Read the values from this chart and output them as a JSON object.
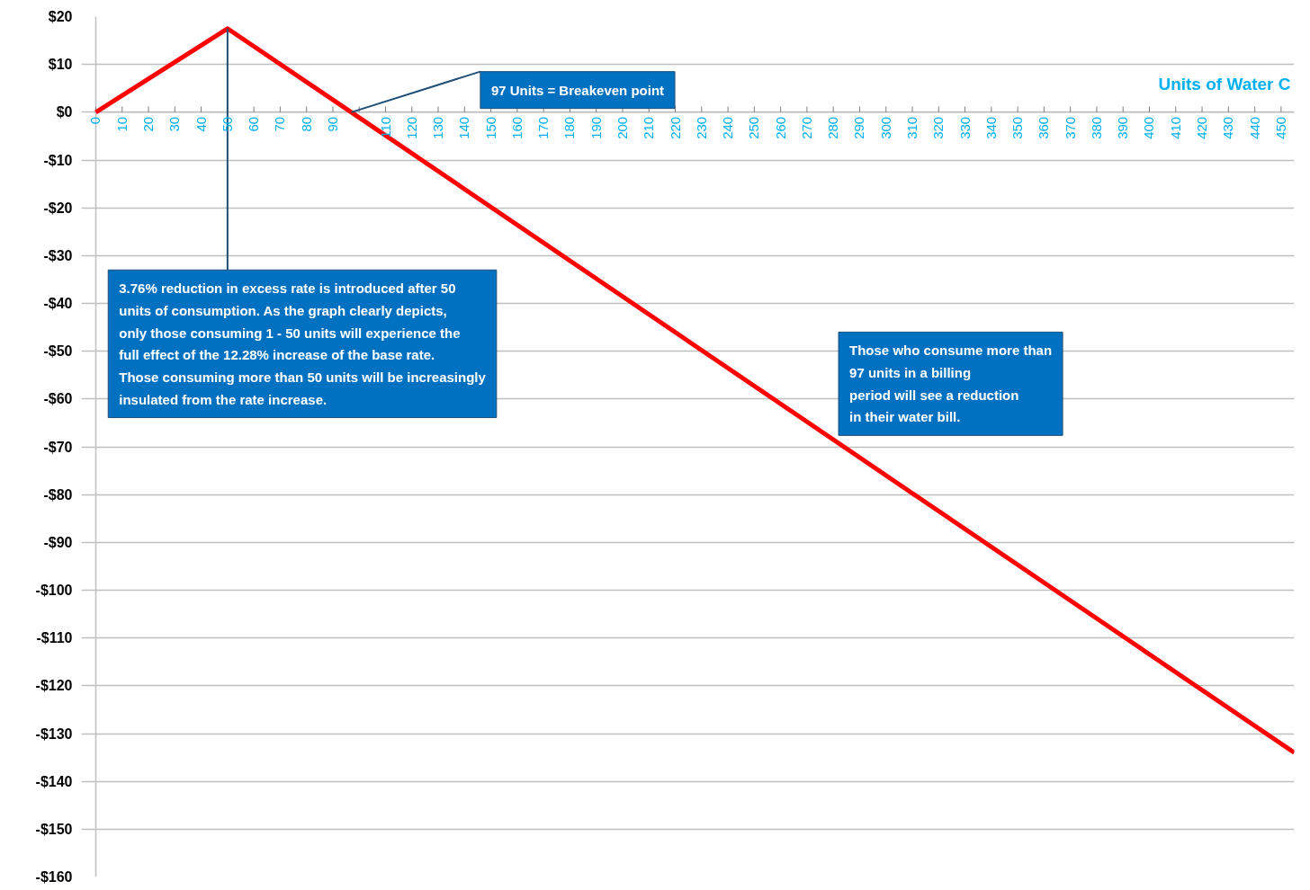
{
  "chart_data": {
    "type": "line",
    "xlabel": "Units of Water C",
    "x": [
      0,
      50,
      97,
      455
    ],
    "series": [
      {
        "color": "#ff0000",
        "values": [
          0,
          17.5,
          0,
          -134
        ]
      }
    ],
    "xlim": [
      0,
      455
    ],
    "xticks": [
      0,
      10,
      20,
      30,
      40,
      50,
      60,
      70,
      80,
      90,
      {
        "value": 100,
        "label": null
      },
      110,
      120,
      130,
      140,
      150,
      160,
      170,
      180,
      190,
      200,
      210,
      220,
      230,
      240,
      250,
      260,
      270,
      280,
      290,
      300,
      310,
      320,
      330,
      340,
      350,
      360,
      370,
      380,
      390,
      400,
      410,
      420,
      430,
      440,
      450
    ],
    "ylim": [
      -160,
      20
    ],
    "yticks": [
      {
        "value": 20,
        "label": "$20"
      },
      {
        "value": 10,
        "label": "$10"
      },
      {
        "value": 0,
        "label": "$0"
      },
      {
        "value": -10,
        "label": "-$10"
      },
      {
        "value": -20,
        "label": "-$20"
      },
      {
        "value": -30,
        "label": "-$30"
      },
      {
        "value": -40,
        "label": "-$40"
      },
      {
        "value": -50,
        "label": "-$50"
      },
      {
        "value": -60,
        "label": "-$60"
      },
      {
        "value": -70,
        "label": "-$70"
      },
      {
        "value": -80,
        "label": "-$80"
      },
      {
        "value": -90,
        "label": "-$90"
      },
      {
        "value": -100,
        "label": "-$100"
      },
      {
        "value": -110,
        "label": "-$110"
      },
      {
        "value": -120,
        "label": "-$120"
      },
      {
        "value": -130,
        "label": "-$130"
      },
      {
        "value": -140,
        "label": "-$140"
      },
      {
        "value": -150,
        "label": "-$150"
      },
      {
        "value": -160,
        "label": "-$160"
      }
    ],
    "grid": "y",
    "annotations": [
      {
        "text": "3.76% reduction in excess rate is introduced after 50 units of consumption. As the graph clearly depicts, only those consuming 1 - 50 units will experience the full effect of the 12.28% increase of the base rate. Those consuming more than 50 units will be increasingly insulated from the rate increase.",
        "x": 50,
        "y": 17.5
      },
      {
        "text": "97 Units = Breakeven point",
        "x": 97,
        "y": 0
      },
      "Those who consume more than 97 units in a billing period will see a reduction in their water bill."
    ]
  }
}
